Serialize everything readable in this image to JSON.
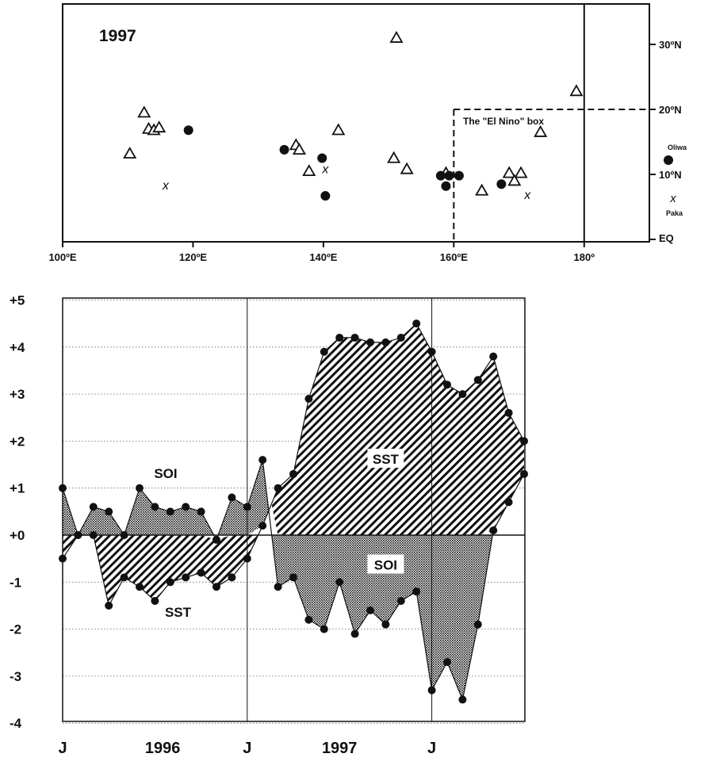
{
  "chart_data": [
    {
      "type": "scatter",
      "title": "1997",
      "xlim": [
        100,
        190
      ],
      "ylim": [
        0,
        35
      ],
      "x_ticks": [
        {
          "value": 100,
          "label": "100ºE"
        },
        {
          "value": 120,
          "label": "120ºE"
        },
        {
          "value": 140,
          "label": "140ºE"
        },
        {
          "value": 160,
          "label": "160ºE"
        },
        {
          "value": 180,
          "label": "180º"
        }
      ],
      "y_ticks": [
        {
          "value": 0,
          "label": "EQ"
        },
        {
          "value": 10,
          "label": "10ºN"
        },
        {
          "value": 20,
          "label": "20ºN"
        },
        {
          "value": 30,
          "label": "30ºN"
        }
      ],
      "box_label": "The \"El Nino\" box",
      "el_nino_box": {
        "lon_min": 160,
        "lat_max": 20
      },
      "legend": [
        {
          "name": "Oliwa",
          "marker": "circle"
        },
        {
          "name": "Paka",
          "marker": "x"
        }
      ],
      "triangles": [
        [
          112.5,
          19.5
        ],
        [
          113.2,
          17.0
        ],
        [
          114.0,
          16.8
        ],
        [
          114.8,
          17.2
        ],
        [
          110.3,
          13.2
        ],
        [
          151.2,
          31.0
        ],
        [
          178.8,
          22.8
        ],
        [
          142.3,
          16.8
        ],
        [
          135.8,
          14.5
        ],
        [
          136.3,
          13.8
        ],
        [
          137.8,
          10.5
        ],
        [
          150.8,
          12.5
        ],
        [
          152.8,
          10.8
        ],
        [
          158.8,
          10.2
        ],
        [
          164.3,
          7.5
        ],
        [
          168.5,
          10.2
        ],
        [
          170.3,
          10.2
        ],
        [
          169.3,
          9.0
        ],
        [
          173.3,
          16.5
        ]
      ],
      "circles": [
        [
          119.3,
          16.8
        ],
        [
          134.0,
          13.8
        ],
        [
          139.8,
          12.5
        ],
        [
          140.3,
          6.7
        ],
        [
          158.0,
          9.8
        ],
        [
          159.3,
          9.8
        ],
        [
          160.8,
          9.8
        ],
        [
          158.8,
          8.2
        ],
        [
          167.3,
          8.5
        ]
      ],
      "crosses": [
        [
          115.8,
          8.3
        ],
        [
          140.3,
          10.8
        ],
        [
          171.3,
          6.8
        ]
      ]
    },
    {
      "type": "area",
      "ylim": [
        -4,
        5
      ],
      "y_ticks": [
        "+5",
        "+4",
        "+3",
        "+2",
        "+1",
        "+0",
        "-1",
        "-2",
        "-3",
        "-4"
      ],
      "x_ticks": [
        "J",
        "1996",
        "J",
        "1997",
        "J"
      ],
      "x_tick_months": [
        0,
        6.5,
        12,
        18,
        24
      ],
      "month_markers": [
        12,
        24
      ],
      "series": [
        {
          "name": "SOI",
          "values": [
            1.0,
            0.0,
            0.6,
            0.5,
            0.0,
            1.0,
            0.6,
            0.5,
            0.6,
            0.5,
            -0.1,
            0.8,
            0.6,
            1.6,
            -1.1,
            -0.9,
            -1.8,
            -2.0,
            -1.0,
            -2.1,
            -1.6,
            -1.9,
            -1.4,
            -1.2,
            -3.3,
            -2.7,
            -3.5,
            -1.9,
            0.1,
            0.7,
            1.3
          ]
        },
        {
          "name": "SST",
          "values": [
            -0.5,
            0.0,
            0.0,
            -1.5,
            -0.9,
            -1.1,
            -1.4,
            -1.0,
            -0.9,
            -0.8,
            -1.1,
            -0.9,
            -0.5,
            0.2,
            1.0,
            1.3,
            2.9,
            3.9,
            4.2,
            4.2,
            4.1,
            4.1,
            4.2,
            4.5,
            3.9,
            3.2,
            3.0,
            3.3,
            3.8,
            2.6,
            2.0
          ]
        }
      ],
      "annotations": [
        {
          "text": "SOI",
          "month": 6.7,
          "value": 1.3
        },
        {
          "text": "SST",
          "month": 7.5,
          "value": -1.65
        },
        {
          "text": "SST",
          "month": 21.0,
          "value": 1.6
        },
        {
          "text": "SOI",
          "month": 21.0,
          "value": -0.65
        }
      ]
    }
  ]
}
